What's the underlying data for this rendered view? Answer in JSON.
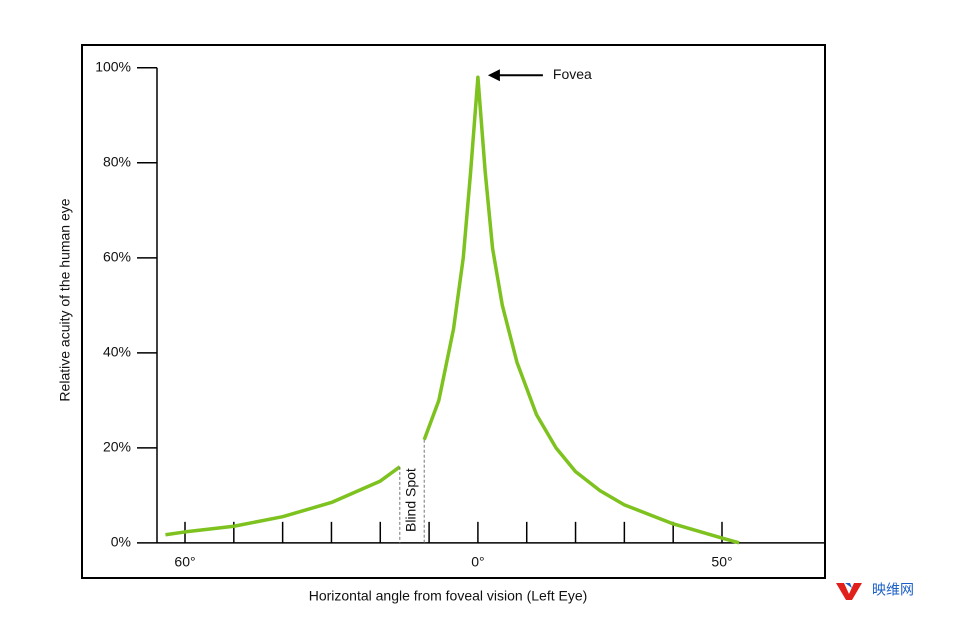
{
  "chart_data": {
    "type": "line",
    "x_label": "Horizontal angle from foveal vision (Left Eye)",
    "y_label": "Relative acuity of the human eye",
    "x": [
      -64,
      -60,
      -50,
      -40,
      -30,
      -20,
      -16,
      -13.5,
      -11,
      -8,
      -5,
      -3,
      -1.5,
      0,
      1.5,
      3,
      5,
      8,
      12,
      16,
      20,
      25,
      30,
      35,
      40,
      45,
      50,
      53.5
    ],
    "series": [
      {
        "color": "#7dc21e",
        "values": [
          1.7,
          2.3,
          3.5,
          5.5,
          8.5,
          13,
          16,
          null,
          21.7,
          30,
          45,
          60,
          78,
          98,
          78,
          62,
          50,
          38,
          27,
          20,
          15,
          11,
          8,
          6,
          4,
          2.5,
          1,
          0
        ]
      }
    ],
    "xlim": [
      -81.1,
      71.1
    ],
    "ylim": [
      -7.4,
      104.8
    ],
    "xticks": [
      -60,
      -50,
      -40,
      -30,
      -20,
      -10,
      0,
      10,
      20,
      30,
      40,
      50
    ],
    "xtick_labels": [
      {
        "value": -60,
        "label": "60°"
      },
      {
        "value": 0,
        "label": "0°"
      },
      {
        "value": 50,
        "label": "50°"
      }
    ],
    "yticks": [
      {
        "value": 0,
        "label": "0%"
      },
      {
        "value": 20,
        "label": "20%"
      },
      {
        "value": 40,
        "label": "40%"
      },
      {
        "value": 60,
        "label": "60%"
      },
      {
        "value": 80,
        "label": "80%"
      },
      {
        "value": 100,
        "label": "100%"
      }
    ],
    "annotations": [
      {
        "text": "Fovea",
        "x": 0,
        "y": 98
      },
      {
        "text": "Blind Spot",
        "x": -13.5,
        "y": 9
      }
    ],
    "watermark": "映维网"
  }
}
